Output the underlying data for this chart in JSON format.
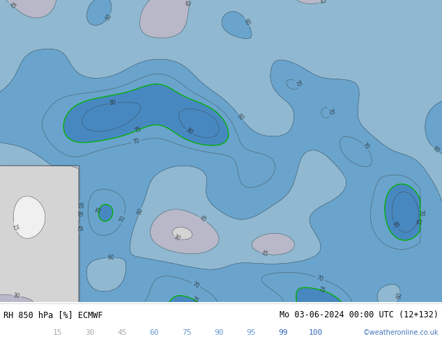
{
  "title_left": "RH 850 hPa [%] ECMWF",
  "title_right": "Mo 03-06-2024 00:00 UTC (12+132)",
  "credit": "©weatheronline.co.uk",
  "legend_values": [
    "15",
    "30",
    "45",
    "60",
    "75",
    "90",
    "95",
    "99",
    "100"
  ],
  "legend_text_colors": [
    "#aaaaaa",
    "#aaaaaa",
    "#aaaaaa",
    "#6699cc",
    "#6699cc",
    "#6699cc",
    "#6699cc",
    "#3366bb",
    "#3366bb"
  ],
  "fill_colors": [
    "#f0f0f0",
    "#d4d4d4",
    "#b8b8c8",
    "#90b8d0",
    "#6aa4cc",
    "#4888c0",
    "#2868b0",
    "#1050a0",
    "#003090"
  ],
  "levels": [
    0,
    15,
    30,
    45,
    60,
    75,
    90,
    95,
    99,
    100
  ],
  "bg_color": "#ffffff",
  "figsize": [
    6.34,
    4.9
  ],
  "dpi": 100
}
